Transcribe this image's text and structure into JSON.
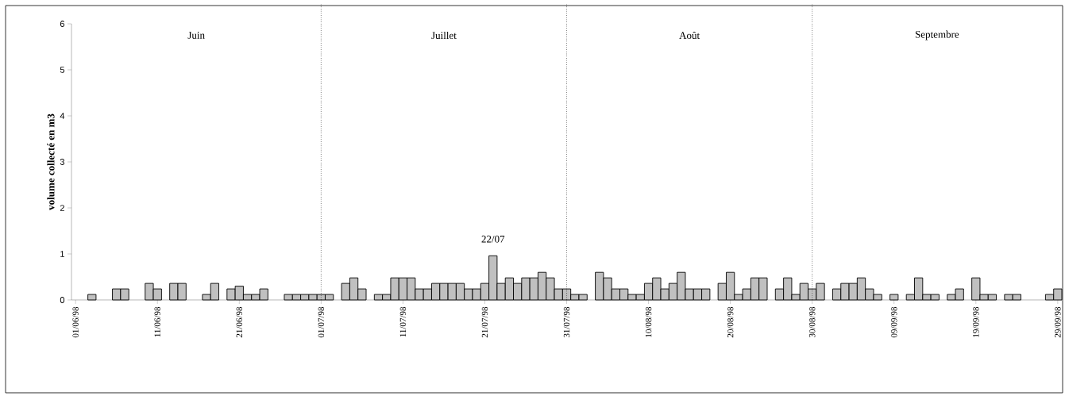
{
  "chart_data": {
    "type": "bar",
    "ylabel": "volume  collecté en m3",
    "color": "#c0c0c0",
    "x": [
      "1998-06-03",
      "1998-06-06",
      "1998-06-07",
      "1998-06-10",
      "1998-06-11",
      "1998-06-13",
      "1998-06-14",
      "1998-06-17",
      "1998-06-18",
      "1998-06-20",
      "1998-06-21",
      "1998-06-22",
      "1998-06-23",
      "1998-06-24",
      "1998-06-27",
      "1998-06-28",
      "1998-06-29",
      "1998-06-30",
      "1998-07-01",
      "1998-07-02",
      "1998-07-04",
      "1998-07-05",
      "1998-07-06",
      "1998-07-08",
      "1998-07-09",
      "1998-07-10",
      "1998-07-11",
      "1998-07-12",
      "1998-07-13",
      "1998-07-14",
      "1998-07-15",
      "1998-07-16",
      "1998-07-17",
      "1998-07-18",
      "1998-07-19",
      "1998-07-20",
      "1998-07-21",
      "1998-07-22",
      "1998-07-23",
      "1998-07-24",
      "1998-07-25",
      "1998-07-26",
      "1998-07-27",
      "1998-07-28",
      "1998-07-29",
      "1998-07-30",
      "1998-07-31",
      "1998-08-01",
      "1998-08-02",
      "1998-08-04",
      "1998-08-05",
      "1998-08-06",
      "1998-08-07",
      "1998-08-08",
      "1998-08-09",
      "1998-08-10",
      "1998-08-11",
      "1998-08-12",
      "1998-08-13",
      "1998-08-14",
      "1998-08-15",
      "1998-08-16",
      "1998-08-17",
      "1998-08-19",
      "1998-08-20",
      "1998-08-21",
      "1998-08-22",
      "1998-08-23",
      "1998-08-24",
      "1998-08-26",
      "1998-08-27",
      "1998-08-28",
      "1998-08-29",
      "1998-08-30",
      "1998-08-31",
      "1998-09-02",
      "1998-09-03",
      "1998-09-04",
      "1998-09-05",
      "1998-09-06",
      "1998-09-07",
      "1998-09-09",
      "1998-09-11",
      "1998-09-12",
      "1998-09-13",
      "1998-09-14",
      "1998-09-16",
      "1998-09-17",
      "1998-09-19",
      "1998-09-20",
      "1998-09-21",
      "1998-09-23",
      "1998-09-24",
      "1998-09-28",
      "1998-09-29"
    ],
    "values": [
      0.12,
      0.24,
      0.24,
      0.36,
      0.24,
      0.36,
      0.36,
      0.12,
      0.36,
      0.24,
      0.3,
      0.12,
      0.12,
      0.24,
      0.12,
      0.12,
      0.12,
      0.12,
      0.12,
      0.12,
      0.36,
      0.48,
      0.24,
      0.12,
      0.12,
      0.48,
      0.48,
      0.48,
      0.24,
      0.24,
      0.36,
      0.36,
      0.36,
      0.36,
      0.24,
      0.24,
      0.36,
      0.96,
      0.36,
      0.48,
      0.36,
      0.48,
      0.48,
      0.6,
      0.48,
      0.24,
      0.24,
      0.12,
      0.12,
      0.6,
      0.48,
      0.24,
      0.24,
      0.12,
      0.12,
      0.36,
      0.48,
      0.24,
      0.36,
      0.6,
      0.24,
      0.24,
      0.24,
      0.36,
      0.6,
      0.12,
      0.24,
      0.48,
      0.48,
      0.24,
      0.48,
      0.12,
      0.36,
      0.24,
      0.36,
      0.24,
      0.36,
      0.36,
      0.48,
      0.24,
      0.12,
      0.12,
      0.12,
      0.48,
      0.12,
      0.12,
      0.12,
      0.24,
      0.48,
      0.12,
      0.12,
      0.12,
      0.12,
      0.12,
      0.24
    ],
    "xlim": [
      "1998-05-31T12:00",
      "1998-09-29T12:00"
    ],
    "xticks": [
      {
        "value": "1998-06-01",
        "label": "01/06/98"
      },
      {
        "value": "1998-06-11",
        "label": "11/06/98"
      },
      {
        "value": "1998-06-21",
        "label": "21/06/98"
      },
      {
        "value": "1998-07-01",
        "label": "01/07/98"
      },
      {
        "value": "1998-07-11",
        "label": "11/07/98"
      },
      {
        "value": "1998-07-21",
        "label": "21/07/98"
      },
      {
        "value": "1998-07-31",
        "label": "31/07/98"
      },
      {
        "value": "1998-08-10",
        "label": "10/08/98"
      },
      {
        "value": "1998-08-20",
        "label": "20/08/98"
      },
      {
        "value": "1998-08-30",
        "label": "30/08/98"
      },
      {
        "value": "1998-09-09",
        "label": "09/09/98"
      },
      {
        "value": "1998-09-19",
        "label": "19/09/98"
      },
      {
        "value": "1998-09-29",
        "label": "29/09/98"
      }
    ],
    "ylim": [
      0,
      6
    ],
    "yticks": [
      0,
      1,
      2,
      3,
      4,
      5,
      6
    ],
    "ref_lines": [
      {
        "axis": "x",
        "value": "1998-07-01",
        "line_style": "dotted"
      },
      {
        "axis": "x",
        "value": "1998-07-31",
        "line_style": "dotted"
      },
      {
        "axis": "x",
        "value": "1998-08-30",
        "line_style": "dotted"
      }
    ],
    "annotations": [
      "Juin",
      "Juillet",
      "Août",
      "Septembre",
      {
        "text": "22/07",
        "x": "1998-07-22",
        "y": 0.96
      }
    ],
    "grid": false
  }
}
